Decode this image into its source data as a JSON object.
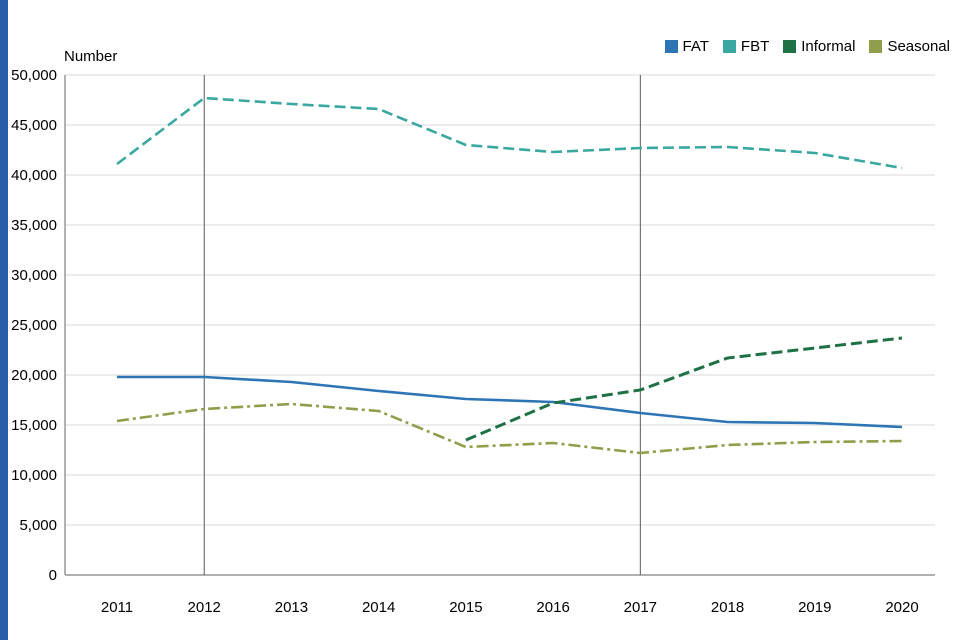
{
  "chart_data": {
    "type": "line",
    "title": "Number",
    "x": [
      2011,
      2012,
      2013,
      2014,
      2015,
      2016,
      2017,
      2018,
      2019,
      2020
    ],
    "ylim": [
      0,
      50000
    ],
    "ytick_step": 5000,
    "ytick_labels": [
      "0",
      "5,000",
      "10,000",
      "15,000",
      "20,000",
      "25,000",
      "30,000",
      "35,000",
      "40,000",
      "45,000",
      "50,000"
    ],
    "grid": "horizontal",
    "vlines": [
      2012,
      2017
    ],
    "legend_position": "top-right",
    "series": [
      {
        "name": "FAT",
        "color": "#2e75b6",
        "dash": "solid",
        "values": [
          19800,
          19800,
          19300,
          18400,
          17600,
          17300,
          16200,
          15300,
          15200,
          14800
        ]
      },
      {
        "name": "FBT",
        "color": "#3aa8a0",
        "dash": "dashed",
        "values": [
          41100,
          47700,
          47100,
          46600,
          43000,
          42300,
          42700,
          42800,
          42200,
          40700
        ]
      },
      {
        "name": "Informal",
        "color": "#1e7145",
        "dash": "dashed",
        "values": [
          null,
          null,
          null,
          null,
          13500,
          17200,
          18500,
          21700,
          22700,
          23700
        ]
      },
      {
        "name": "Seasonal",
        "color": "#8f9e4a",
        "dash": "dashdot",
        "values": [
          15400,
          16600,
          17100,
          16400,
          12800,
          13200,
          12200,
          13000,
          13300,
          13400
        ]
      }
    ]
  },
  "colors": {
    "left_strip": "#2a5caa",
    "gridline": "#d9d9d9",
    "axis": "#808080",
    "vline": "#595959",
    "text": "#000000"
  }
}
